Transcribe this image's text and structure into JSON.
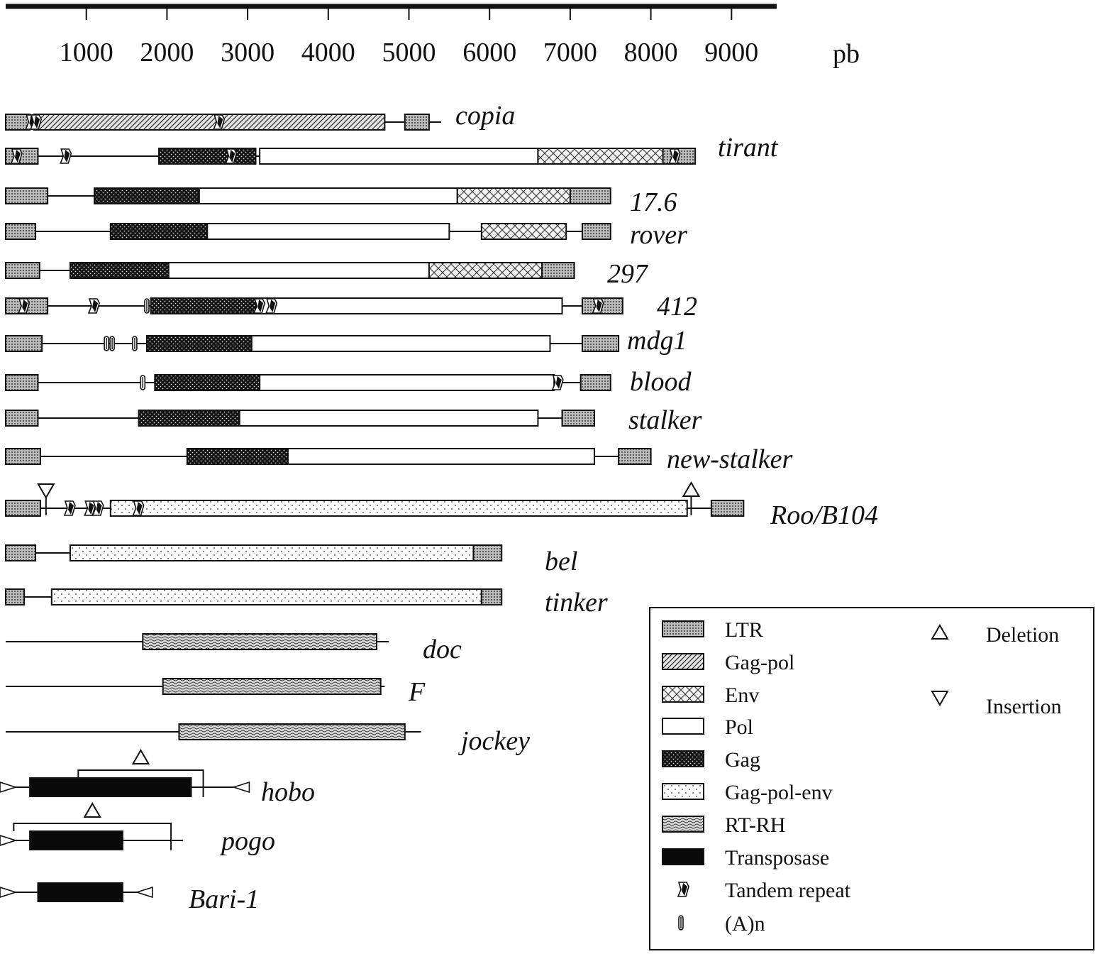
{
  "scale": {
    "ticks": [
      "1000",
      "2000",
      "3000",
      "4000",
      "5000",
      "6000",
      "7000",
      "8000",
      "9000"
    ],
    "unit": "pb"
  },
  "elements": [
    {
      "name": "copia",
      "spans": [
        [
          0,
          5400
        ]
      ],
      "segments": [
        {
          "type": "ltr",
          "from": 0,
          "to": 300
        },
        {
          "type": "gagpol",
          "from": 350,
          "to": 4700
        },
        {
          "type": "ltr",
          "from": 4950,
          "to": 5250
        }
      ],
      "markers": [
        {
          "kind": "tandem",
          "at": 320
        },
        {
          "kind": "tandem",
          "at": 380
        },
        {
          "kind": "tandem",
          "at": 2650
        }
      ]
    },
    {
      "name": "tirant",
      "spans": [
        [
          0,
          8550
        ]
      ],
      "segments": [
        {
          "type": "ltr",
          "from": 0,
          "to": 400
        },
        {
          "type": "gag",
          "from": 1900,
          "to": 3100
        },
        {
          "type": "pol",
          "from": 3150,
          "to": 6600
        },
        {
          "type": "env",
          "from": 6600,
          "to": 8250
        },
        {
          "type": "ltr",
          "from": 8150,
          "to": 8550
        }
      ],
      "markers": [
        {
          "kind": "tandem",
          "at": 140
        },
        {
          "kind": "tandem",
          "at": 750
        },
        {
          "kind": "tandem",
          "at": 2800
        },
        {
          "kind": "tandem",
          "at": 8300
        }
      ]
    },
    {
      "name": "17.6",
      "spans": [
        [
          0,
          7500
        ]
      ],
      "segments": [
        {
          "type": "ltr",
          "from": 0,
          "to": 520
        },
        {
          "type": "gag",
          "from": 1100,
          "to": 2400
        },
        {
          "type": "pol",
          "from": 2400,
          "to": 5600
        },
        {
          "type": "env",
          "from": 5600,
          "to": 7000
        },
        {
          "type": "ltr",
          "from": 7000,
          "to": 7500
        }
      ],
      "markers": []
    },
    {
      "name": "rover",
      "spans": [
        [
          0,
          7500
        ]
      ],
      "segments": [
        {
          "type": "ltr",
          "from": 0,
          "to": 370
        },
        {
          "type": "gag",
          "from": 1300,
          "to": 2600
        },
        {
          "type": "pol",
          "from": 2500,
          "to": 5500
        },
        {
          "type": "env",
          "from": 5900,
          "to": 6950
        },
        {
          "type": "ltr",
          "from": 7150,
          "to": 7500
        }
      ],
      "markers": []
    },
    {
      "name": "297",
      "spans": [
        [
          0,
          7050
        ]
      ],
      "segments": [
        {
          "type": "ltr",
          "from": 0,
          "to": 420
        },
        {
          "type": "gag",
          "from": 800,
          "to": 2050
        },
        {
          "type": "pol",
          "from": 2020,
          "to": 5250
        },
        {
          "type": "env",
          "from": 5250,
          "to": 6650
        },
        {
          "type": "ltr",
          "from": 6650,
          "to": 7050
        }
      ],
      "markers": []
    },
    {
      "name": "412",
      "spans": [
        [
          0,
          7650
        ]
      ],
      "segments": [
        {
          "type": "ltr",
          "from": 0,
          "to": 520
        },
        {
          "type": "gag",
          "from": 1800,
          "to": 3200
        },
        {
          "type": "pol",
          "from": 3120,
          "to": 6900
        },
        {
          "type": "ltr",
          "from": 7150,
          "to": 7650
        }
      ],
      "markers": [
        {
          "kind": "tandem",
          "at": 230
        },
        {
          "kind": "tandem",
          "at": 1100
        },
        {
          "kind": "polyA",
          "at": 1750
        },
        {
          "kind": "tandem",
          "at": 3150
        },
        {
          "kind": "tandem",
          "at": 3300
        },
        {
          "kind": "tandem",
          "at": 7350
        }
      ]
    },
    {
      "name": "mdg1",
      "spans": [
        [
          0,
          7600
        ]
      ],
      "segments": [
        {
          "type": "ltr",
          "from": 0,
          "to": 450
        },
        {
          "type": "gag",
          "from": 1750,
          "to": 3050
        },
        {
          "type": "pol",
          "from": 3050,
          "to": 6750
        },
        {
          "type": "ltr",
          "from": 7150,
          "to": 7600
        }
      ],
      "markers": [
        {
          "kind": "polyA",
          "at": 1250
        },
        {
          "kind": "polyA",
          "at": 1320
        },
        {
          "kind": "polyA",
          "at": 1600
        }
      ]
    },
    {
      "name": "blood",
      "spans": [
        [
          0,
          7500
        ]
      ],
      "segments": [
        {
          "type": "ltr",
          "from": 0,
          "to": 400
        },
        {
          "type": "gag",
          "from": 1850,
          "to": 3150
        },
        {
          "type": "pol",
          "from": 3150,
          "to": 6800
        },
        {
          "type": "ltr",
          "from": 7130,
          "to": 7500
        }
      ],
      "markers": [
        {
          "kind": "polyA",
          "at": 1700
        },
        {
          "kind": "tandem",
          "at": 6850
        }
      ]
    },
    {
      "name": "stalker",
      "spans": [
        [
          0,
          7300
        ]
      ],
      "segments": [
        {
          "type": "ltr",
          "from": 0,
          "to": 400
        },
        {
          "type": "gag",
          "from": 1650,
          "to": 2900
        },
        {
          "type": "pol",
          "from": 2900,
          "to": 6600
        },
        {
          "type": "ltr",
          "from": 6900,
          "to": 7300
        }
      ],
      "markers": []
    },
    {
      "name": "new-stalker",
      "spans": [
        [
          0,
          8000
        ]
      ],
      "segments": [
        {
          "type": "ltr",
          "from": 0,
          "to": 430
        },
        {
          "type": "gag",
          "from": 2250,
          "to": 3800
        },
        {
          "type": "pol",
          "from": 3500,
          "to": 7300
        },
        {
          "type": "ltr",
          "from": 7600,
          "to": 8000
        }
      ],
      "markers": []
    },
    {
      "name": "Roo/B104",
      "spans": [
        [
          0,
          9150
        ]
      ],
      "segments": [
        {
          "type": "ltr",
          "from": 0,
          "to": 430
        },
        {
          "type": "gpe",
          "from": 1300,
          "to": 8450
        },
        {
          "type": "ltr",
          "from": 8750,
          "to": 9150
        }
      ],
      "markers": [
        {
          "kind": "tandem",
          "at": 800
        },
        {
          "kind": "tandem",
          "at": 1050
        },
        {
          "kind": "tandem",
          "at": 1150
        },
        {
          "kind": "tandem",
          "at": 1650
        }
      ],
      "symbols": [
        {
          "kind": "insertion",
          "at": 500
        },
        {
          "kind": "deletion",
          "at": 8500
        }
      ]
    },
    {
      "name": "bel",
      "spans": [
        [
          0,
          6150
        ]
      ],
      "segments": [
        {
          "type": "ltr",
          "from": 0,
          "to": 370
        },
        {
          "type": "gpe",
          "from": 800,
          "to": 5800
        },
        {
          "type": "ltr",
          "from": 5800,
          "to": 6150
        }
      ],
      "markers": []
    },
    {
      "name": "tinker",
      "spans": [
        [
          0,
          6150
        ]
      ],
      "segments": [
        {
          "type": "ltr",
          "from": 0,
          "to": 230
        },
        {
          "type": "gpe",
          "from": 570,
          "to": 5900
        },
        {
          "type": "ltr",
          "from": 5900,
          "to": 6150
        }
      ],
      "markers": []
    },
    {
      "name": "doc",
      "spans": [
        [
          0,
          4750
        ]
      ],
      "segments": [
        {
          "type": "rtrh",
          "from": 1700,
          "to": 4600
        }
      ],
      "markers": []
    },
    {
      "name": "F",
      "spans": [
        [
          0,
          4700
        ]
      ],
      "segments": [
        {
          "type": "rtrh",
          "from": 1950,
          "to": 4650
        }
      ],
      "markers": []
    },
    {
      "name": "jockey",
      "spans": [
        [
          0,
          5150
        ]
      ],
      "segments": [
        {
          "type": "rtrh",
          "from": 2150,
          "to": 4950
        }
      ],
      "markers": []
    },
    {
      "name": "hobo",
      "spans": [
        [
          0,
          2950
        ]
      ],
      "segments": [
        {
          "type": "transposase",
          "from": 300,
          "to": 2300
        }
      ],
      "markers": [],
      "tirs": {
        "left": 0,
        "right": 2950
      },
      "bracket": {
        "from": 900,
        "to": 2450
      }
    },
    {
      "name": "pogo",
      "spans": [
        [
          0,
          2200
        ]
      ],
      "segments": [
        {
          "type": "transposase",
          "from": 300,
          "to": 1450
        }
      ],
      "markers": [],
      "tirs": {
        "left": 0
      },
      "bracket": {
        "from": 100,
        "to": 2050
      }
    },
    {
      "name": "Bari-1",
      "spans": [
        [
          0,
          1750
        ]
      ],
      "segments": [
        {
          "type": "transposase",
          "from": 400,
          "to": 1450
        }
      ],
      "markers": [],
      "tirs": {
        "left": 0,
        "right": 1750
      }
    }
  ],
  "legend": {
    "items": [
      {
        "key": "ltr",
        "label": "LTR"
      },
      {
        "key": "gagpol",
        "label": "Gag-pol"
      },
      {
        "key": "env",
        "label": "Env"
      },
      {
        "key": "pol",
        "label": "Pol"
      },
      {
        "key": "gag",
        "label": "Gag"
      },
      {
        "key": "gpe",
        "label": "Gag-pol-env"
      },
      {
        "key": "rtrh",
        "label": "RT-RH"
      },
      {
        "key": "transposase",
        "label": "Transposase"
      },
      {
        "key": "tandem",
        "label": "Tandem repeat"
      },
      {
        "key": "polyA",
        "label": "(A)n"
      }
    ],
    "symbols": [
      {
        "key": "deletion",
        "label": "Deletion"
      },
      {
        "key": "insertion",
        "label": "Insertion"
      }
    ]
  }
}
